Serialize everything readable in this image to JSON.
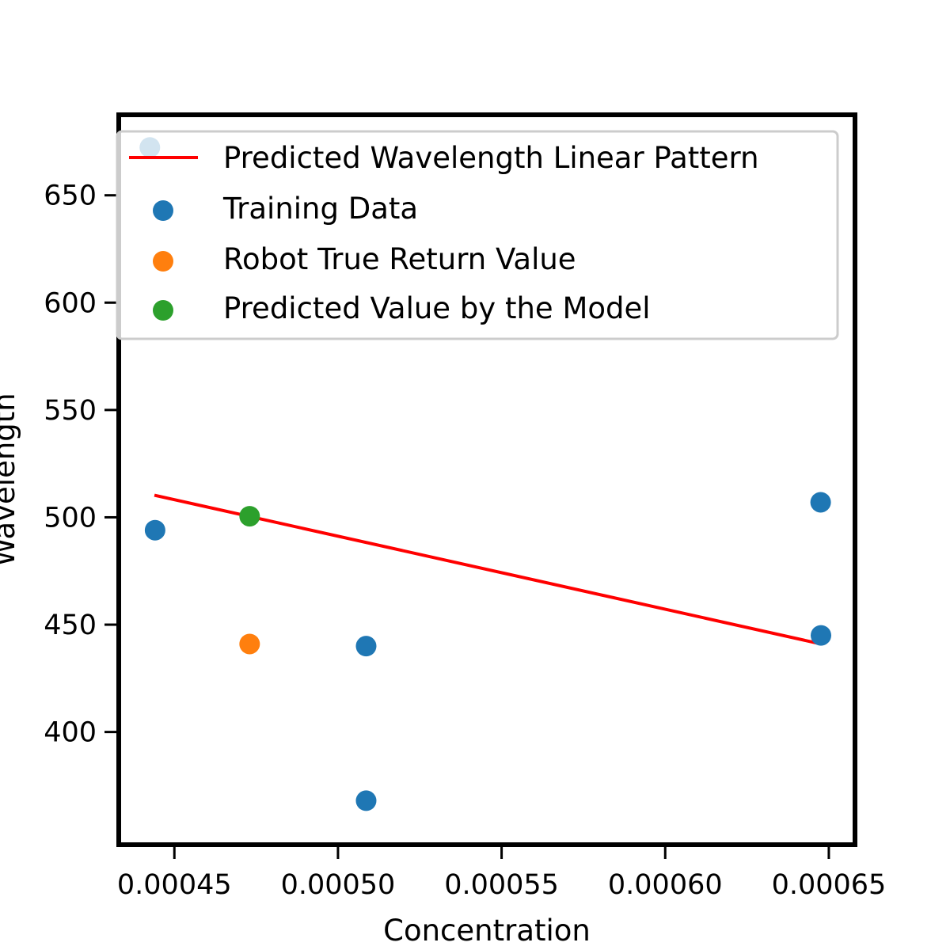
{
  "chart_data": {
    "type": "scatter",
    "xlabel": "Concentration",
    "ylabel": "Wavelength",
    "xlim": [
      0.000433,
      0.000658
    ],
    "ylim": [
      347.5,
      687.5
    ],
    "xticks": [
      0.00045,
      0.0005,
      0.00055,
      0.0006,
      0.00065
    ],
    "xtick_labels": [
      "0.00045",
      "0.00050",
      "0.00055",
      "0.00060",
      "0.00065"
    ],
    "yticks": [
      400,
      450,
      500,
      550,
      600,
      650
    ],
    "ytick_labels": [
      "400",
      "450",
      "500",
      "550",
      "600",
      "650"
    ],
    "grid": false,
    "legend_position": "top",
    "series": [
      {
        "name": "Predicted Wavelength Linear Pattern",
        "kind": "line",
        "color": "#ff0000",
        "points": [
          {
            "x": 0.0004439,
            "y": 510.3
          },
          {
            "x": 0.0006476,
            "y": 441.0
          }
        ]
      },
      {
        "name": "Training Data",
        "kind": "scatter",
        "color": "#1f77b4",
        "points": [
          {
            "x": 0.0004425,
            "y": 672.3
          },
          {
            "x": 0.0004441,
            "y": 494.0
          },
          {
            "x": 0.0005086,
            "y": 440.0
          },
          {
            "x": 0.0005086,
            "y": 368.0
          },
          {
            "x": 0.0006475,
            "y": 507.0
          },
          {
            "x": 0.0006476,
            "y": 445.0
          }
        ]
      },
      {
        "name": "Robot True Return Value",
        "kind": "scatter",
        "color": "#ff7f0e",
        "points": [
          {
            "x": 0.000473,
            "y": 441.0
          }
        ]
      },
      {
        "name": "Predicted Value by the Model",
        "kind": "scatter",
        "color": "#2ca02c",
        "points": [
          {
            "x": 0.000473,
            "y": 500.5
          }
        ]
      }
    ]
  }
}
